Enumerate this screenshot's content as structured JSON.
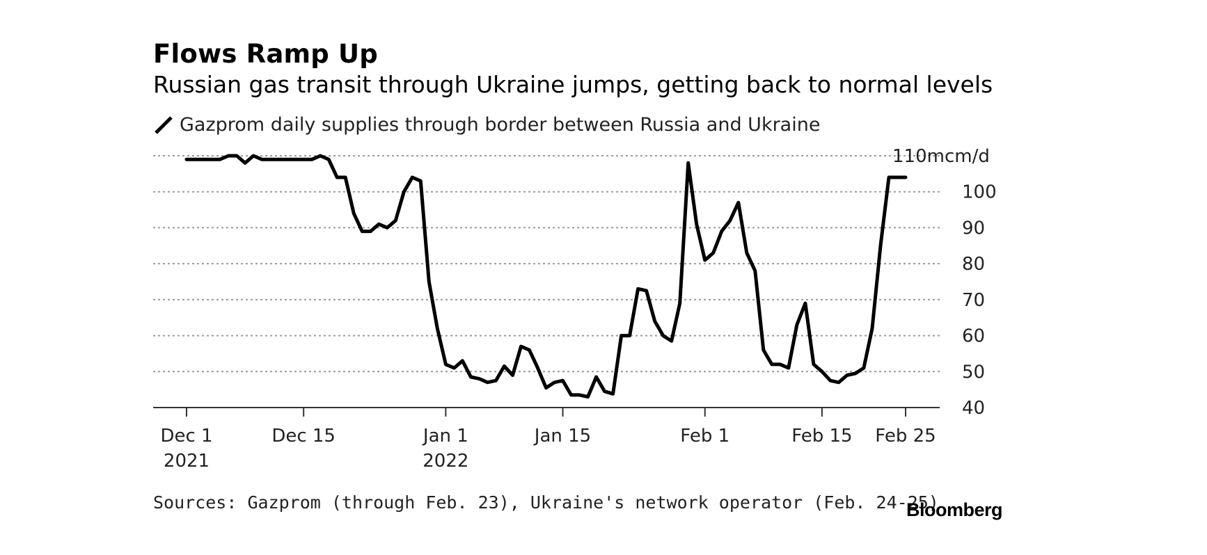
{
  "header": {
    "title": "Flows Ramp Up",
    "subtitle": "Russian gas transit through Ukraine jumps, getting back to normal levels"
  },
  "legend": {
    "label": "Gazprom daily supplies through border between Russia and Ukraine"
  },
  "footer": {
    "source": "Sources: Gazprom (through Feb. 23), Ukraine's network operator (Feb. 24-25)",
    "brand": "Bloomberg"
  },
  "colors": {
    "line": "#000000",
    "grid": "#9a9a9a",
    "text": "#222222"
  },
  "chart_data": {
    "type": "line",
    "title": "Flows Ramp Up",
    "subtitle": "Russian gas transit through Ukraine jumps, getting back to normal levels",
    "xlabel": "",
    "ylabel": "",
    "y_unit": "mcm/d",
    "ylim": [
      40,
      110
    ],
    "y_ticks": [
      40,
      50,
      60,
      70,
      80,
      90,
      100,
      110
    ],
    "y_tick_labels": [
      "40",
      "50",
      "60",
      "70",
      "80",
      "90",
      "100",
      "110mcm/d"
    ],
    "xlim": [
      "2021-12-01",
      "2022-02-25"
    ],
    "x_ticks": [
      {
        "date": "2021-12-01",
        "label": [
          "Dec 1",
          "2021"
        ]
      },
      {
        "date": "2021-12-15",
        "label": [
          "Dec 15"
        ]
      },
      {
        "date": "2022-01-01",
        "label": [
          "Jan 1",
          "2022"
        ]
      },
      {
        "date": "2022-01-15",
        "label": [
          "Jan 15"
        ]
      },
      {
        "date": "2022-02-01",
        "label": [
          "Feb 1"
        ]
      },
      {
        "date": "2022-02-15",
        "label": [
          "Feb 15"
        ]
      },
      {
        "date": "2022-02-25",
        "label": [
          "Feb 25"
        ]
      }
    ],
    "grid": true,
    "legend_position": "top-left",
    "y_axis_position": "right",
    "series": [
      {
        "name": "Gazprom daily supplies through border between Russia and Ukraine",
        "x": [
          "2021-12-01",
          "2021-12-02",
          "2021-12-03",
          "2021-12-04",
          "2021-12-05",
          "2021-12-06",
          "2021-12-07",
          "2021-12-08",
          "2021-12-09",
          "2021-12-10",
          "2021-12-11",
          "2021-12-12",
          "2021-12-13",
          "2021-12-14",
          "2021-12-15",
          "2021-12-16",
          "2021-12-17",
          "2021-12-18",
          "2021-12-19",
          "2021-12-20",
          "2021-12-21",
          "2021-12-22",
          "2021-12-23",
          "2021-12-24",
          "2021-12-25",
          "2021-12-26",
          "2021-12-27",
          "2021-12-28",
          "2021-12-29",
          "2021-12-30",
          "2021-12-31",
          "2022-01-01",
          "2022-01-02",
          "2022-01-03",
          "2022-01-04",
          "2022-01-05",
          "2022-01-06",
          "2022-01-07",
          "2022-01-08",
          "2022-01-09",
          "2022-01-10",
          "2022-01-11",
          "2022-01-12",
          "2022-01-13",
          "2022-01-14",
          "2022-01-15",
          "2022-01-16",
          "2022-01-17",
          "2022-01-18",
          "2022-01-19",
          "2022-01-20",
          "2022-01-21",
          "2022-01-22",
          "2022-01-23",
          "2022-01-24",
          "2022-01-25",
          "2022-01-26",
          "2022-01-27",
          "2022-01-28",
          "2022-01-29",
          "2022-01-30",
          "2022-01-31",
          "2022-02-01",
          "2022-02-02",
          "2022-02-03",
          "2022-02-04",
          "2022-02-05",
          "2022-02-06",
          "2022-02-07",
          "2022-02-08",
          "2022-02-09",
          "2022-02-10",
          "2022-02-11",
          "2022-02-12",
          "2022-02-13",
          "2022-02-14",
          "2022-02-15",
          "2022-02-16",
          "2022-02-17",
          "2022-02-18",
          "2022-02-19",
          "2022-02-20",
          "2022-02-21",
          "2022-02-22",
          "2022-02-23",
          "2022-02-24",
          "2022-02-25"
        ],
        "y": [
          109,
          109,
          109,
          109,
          109,
          110,
          110,
          108,
          110,
          109,
          109,
          109,
          109,
          109,
          109,
          109,
          110,
          109,
          104,
          104,
          94,
          89,
          89,
          91,
          90,
          92,
          100,
          104,
          103,
          75,
          62,
          52,
          51,
          53,
          48.5,
          48,
          47,
          47.5,
          51.5,
          49,
          57,
          56,
          51,
          45.5,
          47,
          47.5,
          43.5,
          43.5,
          43,
          48.5,
          44.5,
          43.8,
          60,
          60,
          73,
          72.5,
          64,
          60,
          58.5,
          69,
          108,
          91,
          81,
          83,
          89,
          92,
          97,
          83,
          78,
          56,
          52,
          52,
          51,
          63,
          69,
          52,
          50,
          47.5,
          47,
          49,
          49.5,
          51,
          62,
          85,
          104,
          104,
          104
        ]
      }
    ]
  }
}
